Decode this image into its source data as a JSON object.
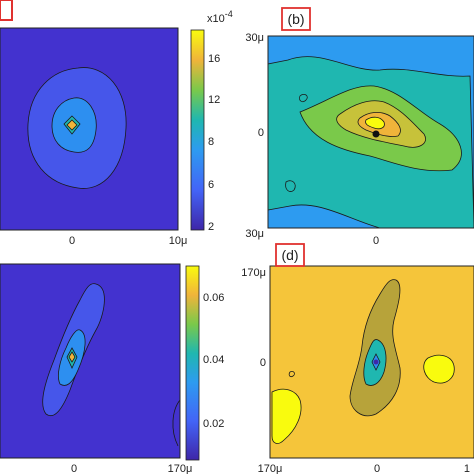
{
  "chart_data": [
    {
      "type": "heatmap",
      "panel_label": "",
      "x_tick_labels": [
        "0",
        "10μ"
      ],
      "y_tick_labels": [],
      "colorbar": {
        "ticks": [
          "16",
          "12",
          "8",
          "6",
          "2"
        ],
        "exponent_label": "x10",
        "exponent_power": "-4",
        "range": [
          2,
          18
        ]
      }
    },
    {
      "type": "heatmap",
      "panel_label": "(b)",
      "x_tick_labels": [
        "0"
      ],
      "y_tick_labels": [
        "30μ",
        "0",
        "30μ"
      ]
    },
    {
      "type": "heatmap",
      "panel_label": "",
      "x_tick_labels": [
        "0",
        "170μ"
      ],
      "y_tick_labels": [],
      "colorbar": {
        "ticks": [
          "0.06",
          "0.04",
          "0.02"
        ],
        "range": [
          0.01,
          0.07
        ]
      }
    },
    {
      "type": "heatmap",
      "panel_label": "(d)",
      "x_tick_labels": [
        "170μ",
        "0",
        "1"
      ],
      "y_tick_labels": [
        "170μ",
        "0"
      ]
    }
  ],
  "colors": {
    "deep_blue": "#3e26a8",
    "blue": "#4364f7",
    "light_blue": "#2d9bf0",
    "teal": "#1fb7b0",
    "green": "#7ac94a",
    "orange": "#f0b43a",
    "yellow": "#f9fb0e",
    "frame_red": "#e0322f",
    "contour": "#1a1a1a"
  }
}
